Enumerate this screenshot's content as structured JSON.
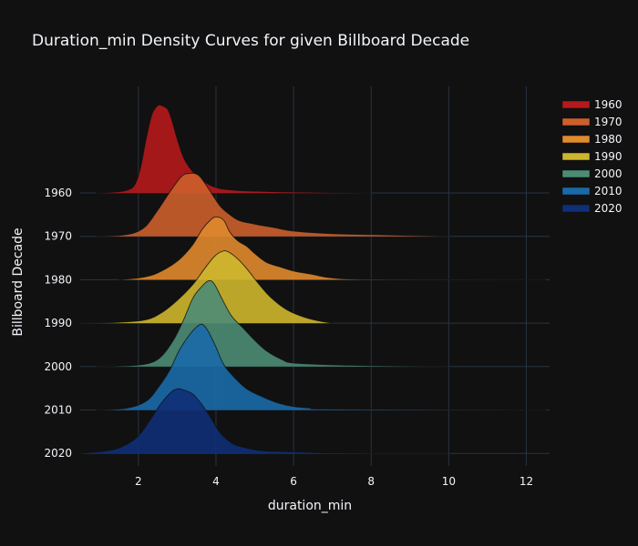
{
  "chart_data": {
    "type": "area",
    "subtype": "ridgeline-density",
    "title": "Duration_min Density Curves for given Billboard Decade",
    "xlabel": "duration_min",
    "ylabel": "Billboard Decade",
    "xlim": [
      0.5,
      12.6
    ],
    "x_ticks": [
      2,
      4,
      6,
      8,
      10,
      12
    ],
    "x_tick_labels": [
      "2",
      "4",
      "6",
      "8",
      "10",
      "12"
    ],
    "grid": true,
    "legend_position": "top-right",
    "categories": [
      "1960",
      "1970",
      "1980",
      "1990",
      "2000",
      "2010",
      "2020"
    ],
    "series": [
      {
        "name": "1960",
        "color": "#b5191b",
        "x": [
          0.9,
          1.4,
          1.7,
          1.9,
          2.05,
          2.2,
          2.35,
          2.5,
          2.6,
          2.75,
          2.85,
          3.0,
          3.15,
          3.3,
          3.5,
          3.8,
          4.1,
          4.5,
          5.0,
          6.0,
          7.0,
          8.0
        ],
        "y": [
          0.0,
          0.01,
          0.03,
          0.09,
          0.28,
          0.62,
          0.9,
          1.0,
          1.0,
          0.96,
          0.85,
          0.62,
          0.42,
          0.3,
          0.2,
          0.1,
          0.05,
          0.03,
          0.02,
          0.01,
          0.005,
          0.0
        ]
      },
      {
        "name": "1970",
        "color": "#cc5f2c",
        "x": [
          0.9,
          1.5,
          1.9,
          2.2,
          2.5,
          2.8,
          3.1,
          3.3,
          3.55,
          3.8,
          4.1,
          4.35,
          4.6,
          5.0,
          5.5,
          6.0,
          7.0,
          8.0,
          9.0,
          10.0
        ],
        "y": [
          0.0,
          0.01,
          0.04,
          0.12,
          0.3,
          0.5,
          0.68,
          0.72,
          0.7,
          0.55,
          0.35,
          0.25,
          0.18,
          0.14,
          0.1,
          0.06,
          0.03,
          0.02,
          0.01,
          0.0
        ]
      },
      {
        "name": "1980",
        "color": "#e08a2e",
        "x": [
          1.5,
          2.0,
          2.4,
          2.8,
          3.1,
          3.4,
          3.65,
          3.85,
          4.0,
          4.2,
          4.35,
          4.55,
          4.8,
          5.0,
          5.3,
          5.7,
          6.0,
          6.5,
          7.0,
          8.0,
          12.5
        ],
        "y": [
          0.0,
          0.02,
          0.06,
          0.15,
          0.25,
          0.4,
          0.58,
          0.68,
          0.72,
          0.68,
          0.55,
          0.45,
          0.38,
          0.3,
          0.2,
          0.14,
          0.1,
          0.06,
          0.02,
          0.005,
          0.0
        ]
      },
      {
        "name": "1990",
        "color": "#ceb72d",
        "x": [
          0.5,
          1.5,
          2.2,
          2.6,
          3.0,
          3.4,
          3.7,
          3.95,
          4.15,
          4.3,
          4.55,
          4.8,
          5.1,
          5.4,
          5.8,
          6.2,
          6.6,
          7.0
        ],
        "y": [
          0.0,
          0.01,
          0.04,
          0.12,
          0.26,
          0.44,
          0.62,
          0.76,
          0.82,
          0.82,
          0.74,
          0.62,
          0.45,
          0.3,
          0.16,
          0.08,
          0.03,
          0.0
        ]
      },
      {
        "name": "2000",
        "color": "#4d8c74",
        "x": [
          0.9,
          1.8,
          2.3,
          2.6,
          2.9,
          3.15,
          3.4,
          3.6,
          3.8,
          3.95,
          4.15,
          4.4,
          4.7,
          5.0,
          5.3,
          5.7,
          6.0,
          7.0,
          8.0,
          10.0
        ],
        "y": [
          0.0,
          0.01,
          0.04,
          0.12,
          0.3,
          0.52,
          0.78,
          0.9,
          0.98,
          0.95,
          0.78,
          0.58,
          0.44,
          0.3,
          0.18,
          0.08,
          0.04,
          0.02,
          0.01,
          0.0
        ]
      },
      {
        "name": "2010",
        "color": "#1a6aa8",
        "x": [
          0.9,
          1.7,
          2.2,
          2.5,
          2.8,
          3.05,
          3.3,
          3.5,
          3.65,
          3.8,
          4.0,
          4.2,
          4.5,
          4.8,
          5.2,
          5.6,
          6.0,
          6.5,
          7.0,
          12.5
        ],
        "y": [
          0.0,
          0.02,
          0.1,
          0.25,
          0.45,
          0.68,
          0.85,
          0.95,
          0.98,
          0.9,
          0.72,
          0.52,
          0.36,
          0.24,
          0.15,
          0.08,
          0.04,
          0.02,
          0.01,
          0.0
        ]
      },
      {
        "name": "2020",
        "color": "#0f2f77",
        "x": [
          0.5,
          1.2,
          1.6,
          2.0,
          2.3,
          2.55,
          2.75,
          2.9,
          3.05,
          3.2,
          3.4,
          3.6,
          3.85,
          4.1,
          4.4,
          4.7,
          5.2,
          5.8,
          6.5,
          7.0,
          8.0,
          10.0
        ],
        "y": [
          0.0,
          0.03,
          0.08,
          0.2,
          0.38,
          0.55,
          0.66,
          0.72,
          0.74,
          0.72,
          0.68,
          0.58,
          0.42,
          0.24,
          0.12,
          0.07,
          0.03,
          0.02,
          0.01,
          0.005,
          0.002,
          0.0
        ]
      }
    ]
  }
}
